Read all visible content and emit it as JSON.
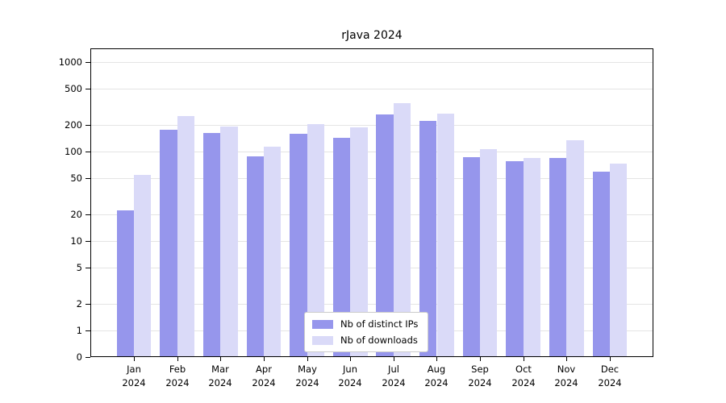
{
  "chart_data": {
    "type": "bar",
    "title": "rJava 2024",
    "categories": [
      "Jan 2024",
      "Feb 2024",
      "Mar 2024",
      "Apr 2024",
      "May 2024",
      "Jun 2024",
      "Jul 2024",
      "Aug 2024",
      "Sep 2024",
      "Oct 2024",
      "Nov 2024",
      "Dec 2024"
    ],
    "series": [
      {
        "name": "Nb of distinct IPs",
        "color": "#9696ec",
        "values": [
          22,
          175,
          160,
          88,
          158,
          142,
          260,
          220,
          87,
          78,
          84,
          60
        ]
      },
      {
        "name": "Nb of downloads",
        "color": "#dadaf8",
        "values": [
          55,
          248,
          190,
          113,
          204,
          188,
          350,
          268,
          107,
          85,
          134,
          74
        ]
      }
    ],
    "yscale": "log (linear below 1, 0 at baseline)",
    "yticks": [
      0,
      1,
      2,
      5,
      10,
      20,
      50,
      100,
      200,
      500,
      1000
    ],
    "ylim": [
      0,
      1450
    ],
    "xlabel": "",
    "ylabel": "",
    "grid": true,
    "legend_position": "lower center",
    "colors": {
      "background": "#ffffff",
      "gridline": "#e4e4e4",
      "axis": "#000000",
      "legend_border": "#cccccc"
    }
  }
}
